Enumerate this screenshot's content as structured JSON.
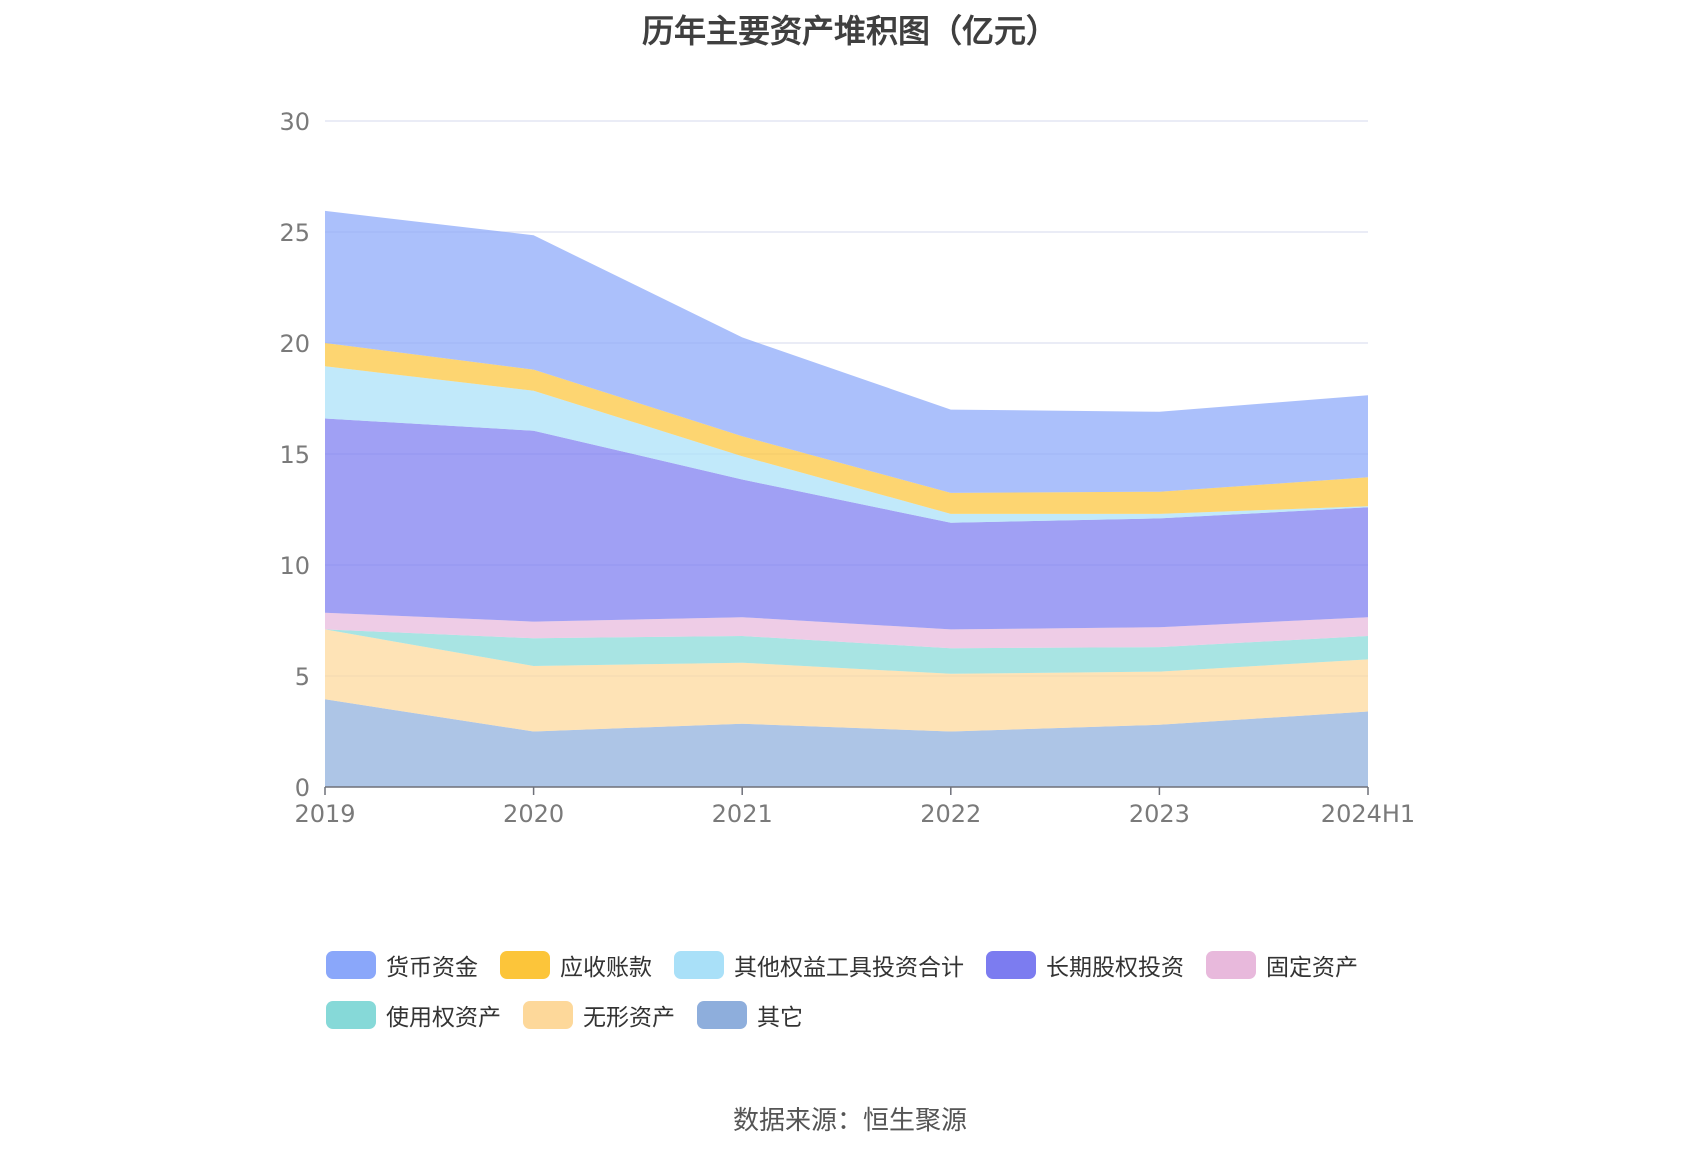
{
  "chart_data": {
    "type": "area",
    "stacked": true,
    "title": "历年主要资产堆积图（亿元）",
    "x": [
      "2019",
      "2020",
      "2021",
      "2022",
      "2023",
      "2024H1"
    ],
    "ylim": [
      0,
      30
    ],
    "yticks": [
      "0",
      "5",
      "10",
      "15",
      "20",
      "25",
      "30"
    ],
    "grid": true,
    "legend_position": "bottom",
    "series": [
      {
        "name": "其它",
        "color": "#8eaedc",
        "values": [
          3.95,
          2.5,
          2.85,
          2.5,
          2.8,
          3.4
        ]
      },
      {
        "name": "无形资产",
        "color": "#fdd89a",
        "values": [
          3.15,
          2.95,
          2.75,
          2.6,
          2.4,
          2.35
        ]
      },
      {
        "name": "使用权资产",
        "color": "#86d9d8",
        "values": [
          0.0,
          1.25,
          1.2,
          1.15,
          1.1,
          1.05
        ]
      },
      {
        "name": "固定资产",
        "color": "#e8b9dc",
        "values": [
          0.75,
          0.75,
          0.85,
          0.85,
          0.9,
          0.85
        ]
      },
      {
        "name": "长期股权投资",
        "color": "#7c7cf0",
        "values": [
          8.75,
          8.6,
          6.2,
          4.8,
          4.9,
          4.95
        ]
      },
      {
        "name": "其他权益工具投资合计",
        "color": "#a9e0f8",
        "values": [
          2.35,
          1.8,
          1.05,
          0.4,
          0.2,
          0.05
        ]
      },
      {
        "name": "应收账款",
        "color": "#fcc53a",
        "values": [
          1.05,
          0.95,
          0.9,
          0.95,
          1.0,
          1.3
        ]
      },
      {
        "name": "货币资金",
        "color": "#8aa7fa",
        "values": [
          5.95,
          6.05,
          4.45,
          3.75,
          3.6,
          3.7
        ]
      }
    ]
  },
  "legend": [
    {
      "label": "货币资金",
      "color": "#8aa7fa"
    },
    {
      "label": "应收账款",
      "color": "#fcc53a"
    },
    {
      "label": "其他权益工具投资合计",
      "color": "#a9e0f8"
    },
    {
      "label": "长期股权投资",
      "color": "#7c7cf0"
    },
    {
      "label": "固定资产",
      "color": "#e8b9dc"
    },
    {
      "label": "使用权资产",
      "color": "#86d9d8"
    },
    {
      "label": "无形资产",
      "color": "#fdd89a"
    },
    {
      "label": "其它",
      "color": "#8eaedc"
    }
  ],
  "source": "数据来源：恒生聚源"
}
